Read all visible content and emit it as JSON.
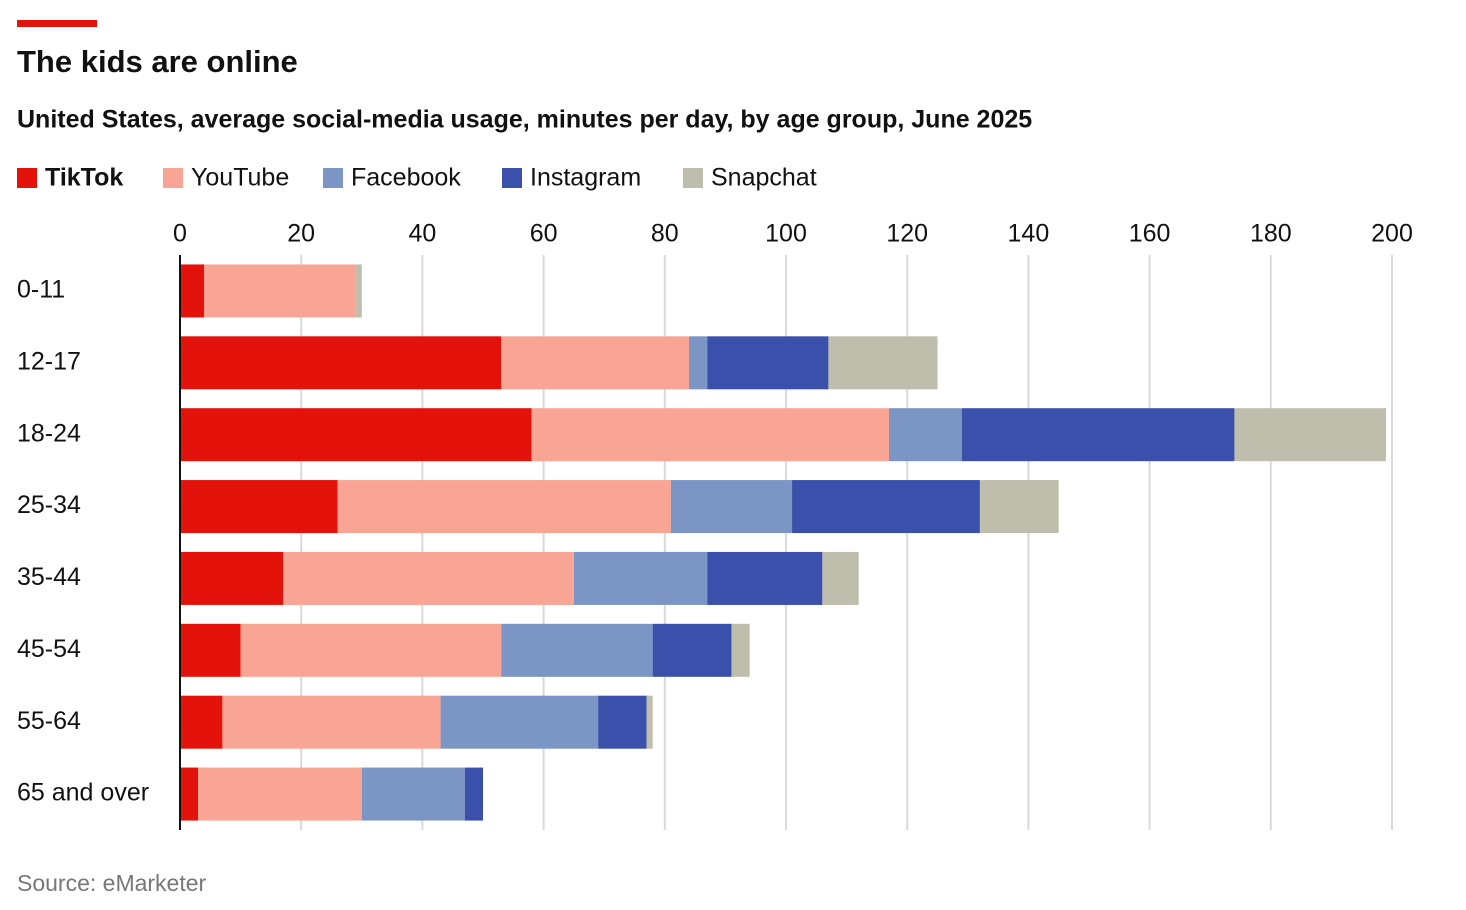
{
  "chart_data": {
    "type": "stacked-bar-horizontal",
    "title": "The kids are online",
    "subtitle": "United States, average social-media usage, minutes per day, by age group, June 2025",
    "source": "Source: eMarketer",
    "categories": [
      "0-11",
      "12-17",
      "18-24",
      "25-34",
      "35-44",
      "45-54",
      "55-64",
      "65 and over"
    ],
    "series": [
      {
        "name": "TikTok",
        "color": "#e3120b",
        "values": [
          4,
          53,
          58,
          26,
          17,
          10,
          7,
          3
        ]
      },
      {
        "name": "YouTube",
        "color": "#f8a595",
        "values": [
          25,
          31,
          59,
          55,
          48,
          43,
          36,
          27
        ]
      },
      {
        "name": "Facebook",
        "color": "#7b95c4",
        "values": [
          0,
          3,
          12,
          20,
          22,
          25,
          26,
          17
        ]
      },
      {
        "name": "Instagram",
        "color": "#3a50ab",
        "values": [
          0,
          20,
          45,
          31,
          19,
          13,
          8,
          3
        ]
      },
      {
        "name": "Snapchat",
        "color": "#bfbdab",
        "values": [
          1,
          18,
          25,
          13,
          6,
          3,
          1,
          0
        ]
      }
    ],
    "xlim": [
      0,
      200
    ],
    "xticks": [
      0,
      20,
      40,
      60,
      80,
      100,
      120,
      140,
      160,
      180,
      200
    ],
    "grid": true
  }
}
